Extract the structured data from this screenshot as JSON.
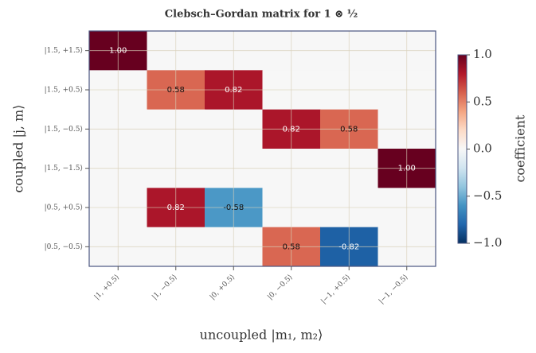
{
  "chart_data": {
    "type": "heatmap",
    "title": "Clebsch–Gordan matrix for 1 ⊗ ½",
    "x_label": "uncoupled  |m₁, m₂⟩",
    "y_label": "coupled  |j, m⟩",
    "x_categories": [
      "|1, +0.5⟩",
      "|1, −0.5⟩",
      "|0, +0.5⟩",
      "|0, −0.5⟩",
      "|−1, +0.5⟩",
      "|−1, −0.5⟩"
    ],
    "y_categories": [
      "|1.5, +1.5⟩",
      "|1.5, +0.5⟩",
      "|1.5, −0.5⟩",
      "|1.5, −1.5⟩",
      "|0.5, +0.5⟩",
      "|0.5, −0.5⟩"
    ],
    "values": [
      [
        1,
        0,
        0,
        0,
        0,
        0
      ],
      [
        0,
        0.58,
        0.82,
        0,
        0,
        0
      ],
      [
        0,
        0,
        0,
        0.82,
        0.58,
        0
      ],
      [
        0,
        0,
        0,
        0,
        0,
        1
      ],
      [
        0,
        0.82,
        -0.58,
        0,
        0,
        0
      ],
      [
        0,
        0,
        0,
        0.58,
        -0.82,
        0
      ]
    ],
    "value_labels": [
      [
        "1.00",
        null,
        null,
        null,
        null,
        null
      ],
      [
        null,
        "0.58",
        "0.82",
        null,
        null,
        null
      ],
      [
        null,
        null,
        null,
        "0.82",
        "0.58",
        null
      ],
      [
        null,
        null,
        null,
        null,
        null,
        "1.00"
      ],
      [
        null,
        "0.82",
        "-0.58",
        null,
        null,
        null
      ],
      [
        null,
        null,
        null,
        "0.58",
        "-0.82",
        null
      ]
    ],
    "colormap": "RdBu_r",
    "colorbar_label": "coefficient",
    "clim": [
      -1,
      1
    ],
    "cticks": [
      {
        "value": 1,
        "label": "1.0"
      },
      {
        "value": 0.5,
        "label": "0.5"
      },
      {
        "value": 0,
        "label": "0.0"
      },
      {
        "value": -0.5,
        "label": "−0.5"
      },
      {
        "value": -1,
        "label": "−1.0"
      }
    ],
    "grid": true
  }
}
